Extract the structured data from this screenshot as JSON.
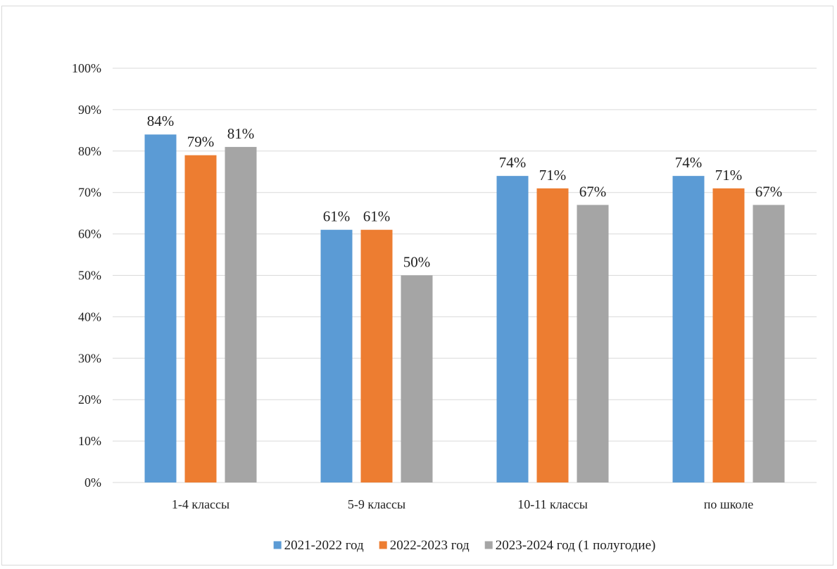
{
  "chart_data": {
    "type": "bar",
    "categories": [
      "1-4 классы",
      "5-9 классы",
      "10-11 классы",
      "по школе"
    ],
    "series": [
      {
        "name": "2021-2022 год",
        "color": "#5b9bd5",
        "values": [
          84,
          61,
          74,
          74
        ],
        "labels": [
          "84%",
          "61%",
          "74%",
          "74%"
        ]
      },
      {
        "name": "2022-2023 год",
        "color": "#ed7d31",
        "values": [
          79,
          61,
          71,
          71
        ],
        "labels": [
          "79%",
          "61%",
          "71%",
          "71%"
        ]
      },
      {
        "name": "2023-2024 год (1 полугодие)",
        "color": "#a5a5a5",
        "values": [
          81,
          50,
          67,
          67
        ],
        "labels": [
          "81%",
          "50%",
          "67%",
          "67%"
        ]
      }
    ],
    "yticks": [
      "0%",
      "10%",
      "20%",
      "30%",
      "40%",
      "50%",
      "60%",
      "70%",
      "80%",
      "90%",
      "100%"
    ],
    "ylim": [
      0,
      100
    ],
    "grid": true,
    "legend_position": "bottom",
    "gridline_color": "#d9d9d9"
  }
}
